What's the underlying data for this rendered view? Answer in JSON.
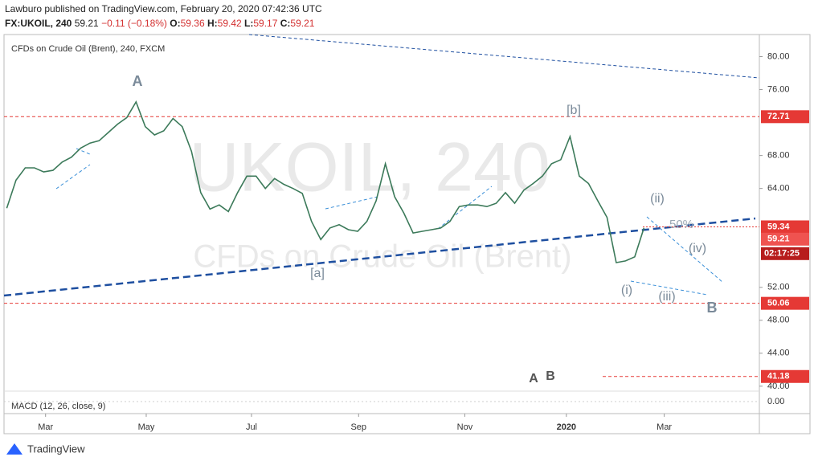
{
  "header": {
    "publisher": "Lawburo published on TradingView.com, February 20, 2020 07:42:36 UTC",
    "symbol": "FX:UKOIL, 240",
    "last": "59.21",
    "change": "−0.11 (−0.18%)",
    "ohlc": [
      {
        "label": "O:",
        "value": "59.36"
      },
      {
        "label": "H:",
        "value": "59.42"
      },
      {
        "label": "L:",
        "value": "59.17"
      },
      {
        "label": "C:",
        "value": "59.21"
      }
    ]
  },
  "chart_data": {
    "type": "line",
    "title": "CFDs on Crude Oil (Brent), 240, FXCM",
    "watermark": [
      "UKOIL, 240",
      "CFDs on Crude Oil (Brent)"
    ],
    "color": "#3c7a5a",
    "values": [
      61.6,
      65,
      66.5,
      66.5,
      66,
      66.2,
      67.2,
      67.8,
      68.9,
      69.5,
      69.8,
      70.8,
      71.8,
      72.6,
      74.5,
      71.5,
      70.5,
      71,
      72.5,
      71.5,
      68.5,
      63.5,
      61.5,
      62,
      61.2,
      63.5,
      65.5,
      65.5,
      64,
      65.2,
      64.5,
      64,
      63.4,
      60,
      57.8,
      59.2,
      59.6,
      59,
      58.8,
      60,
      62.5,
      67,
      63,
      61,
      58.6,
      58.8,
      59,
      59.2,
      60,
      61.8,
      62,
      62,
      61.8,
      62.2,
      63.5,
      62.2,
      63.8,
      64.6,
      65.5,
      67,
      67.5,
      70.3,
      65.5,
      64.6,
      62.5,
      60.5,
      55,
      55.2,
      55.7,
      59.21
    ],
    "xlim": [
      -0.3,
      81.5
    ],
    "xticks": [
      {
        "value": 4.2,
        "label": "Mar"
      },
      {
        "value": 15.1,
        "label": "May"
      },
      {
        "value": 26.5,
        "label": "Jul"
      },
      {
        "value": 38.1,
        "label": "Sep"
      },
      {
        "value": 49.6,
        "label": "Nov"
      },
      {
        "value": 60.6,
        "label": "2020"
      },
      {
        "value": 71.2,
        "label": "Mar"
      }
    ],
    "ylim": [
      39.5,
      82
    ],
    "yticks": [
      {
        "value": 80,
        "label": "80.00"
      },
      {
        "value": 76,
        "label": "76.00"
      },
      {
        "value": 68,
        "label": "68.00"
      },
      {
        "value": 64,
        "label": "64.00"
      },
      {
        "value": 52,
        "label": "52.00"
      },
      {
        "value": 48,
        "label": "48.00"
      },
      {
        "value": 44,
        "label": "44.00"
      },
      {
        "value": 40,
        "label": "40.00"
      }
    ],
    "levels": [
      72.71,
      50.06,
      41.18
    ],
    "price_labels": [
      59.34,
      59.21
    ],
    "countdown": "02:17:25",
    "annotations": [
      "A",
      "[b]",
      "[a]",
      "(ii)",
      "50%",
      "(iv)",
      "(i)",
      "(iii)",
      "B",
      "A",
      "B"
    ],
    "macd": {
      "label": "MACD (12, 26, close, 9)",
      "yticks": [
        {
          "value": 0,
          "label": "0.00"
        }
      ]
    }
  },
  "footer": "TradingView"
}
